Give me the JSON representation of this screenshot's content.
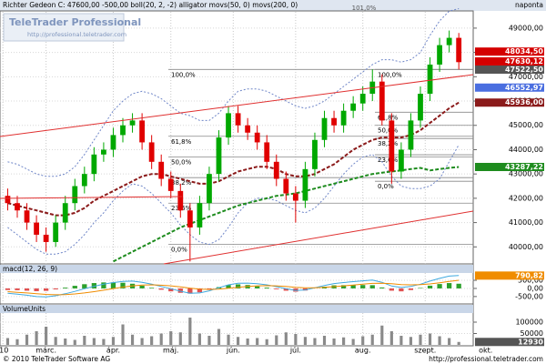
{
  "header": {
    "logo": "TeleTrader Professional",
    "logo_url": "http://professional.teletrader.com",
    "period": "naponta"
  },
  "footer": {
    "copyright": "© 2010 TeleTrader Software AG",
    "url": "http://professional.teletrader.com"
  },
  "chart_data": [
    {
      "type": "candlestick",
      "title": "Richter Gedeon C: 47600,00 -500,00 boll(20, 2, -2) alligator movs(50, 0) movs(200, 0)",
      "top_label": "101,0%",
      "xlim": [
        -0.8,
        48.5
      ],
      "xticks": [
        {
          "value": -0.5,
          "label": "'10"
        },
        {
          "value": 4,
          "label": "márc."
        },
        {
          "value": 11,
          "label": "ápr."
        },
        {
          "value": 17,
          "label": "máj."
        },
        {
          "value": 23.5,
          "label": "jún."
        },
        {
          "value": 30,
          "label": "júl."
        },
        {
          "value": 37,
          "label": "aug."
        },
        {
          "value": 43.5,
          "label": "szept."
        },
        {
          "value": 49.8,
          "label": "okt."
        }
      ],
      "ylim": [
        39300,
        49670
      ],
      "yticks": [
        {
          "value": 40000,
          "label": "40000,00"
        },
        {
          "value": 41000,
          "label": "41000,00"
        },
        {
          "value": 42000,
          "label": "42000,00"
        },
        {
          "value": 43000,
          "label": "43000,00"
        },
        {
          "value": 44000,
          "label": "44000,00"
        },
        {
          "value": 45000,
          "label": "45000,00"
        },
        {
          "value": 46000,
          "label": "46000,00"
        },
        {
          "value": 47000,
          "label": "47000,00"
        },
        {
          "value": 48000,
          "label": "48000,00"
        },
        {
          "value": 49000,
          "label": "49000,00"
        }
      ],
      "grid": true,
      "up_color": "#00a800",
      "down_color": "#e00000",
      "ohlc": {
        "open": [
          42100,
          41800,
          41500,
          41000,
          40500,
          40200,
          41000,
          41800,
          42500,
          43000,
          43800,
          44000,
          44600,
          45000,
          45200,
          44300,
          43500,
          42800,
          42300,
          41500,
          40800,
          41800,
          43000,
          44500,
          45500,
          45000,
          44700,
          44300,
          43500,
          42800,
          42200,
          41900,
          43200,
          44400,
          45300,
          45000,
          45600,
          45900,
          46300,
          46800,
          45200,
          43100,
          44000,
          45200,
          46300,
          47500,
          48300,
          48600
        ],
        "high": [
          42400,
          42100,
          41800,
          41300,
          40800,
          41300,
          42100,
          42800,
          43300,
          44100,
          44300,
          44900,
          45300,
          45500,
          45500,
          44600,
          43800,
          43100,
          42600,
          41800,
          42100,
          43300,
          44800,
          45800,
          45800,
          45300,
          45000,
          44600,
          43800,
          43100,
          42500,
          43500,
          44700,
          45600,
          45600,
          45900,
          46200,
          46600,
          47300,
          47100,
          45500,
          44300,
          45500,
          46600,
          47800,
          48600,
          48900,
          48800
        ],
        "low": [
          41500,
          41200,
          40700,
          40200,
          39800,
          40000,
          40700,
          41500,
          42200,
          42700,
          43500,
          43700,
          44300,
          44700,
          44000,
          43200,
          42500,
          42000,
          41200,
          39400,
          40500,
          41500,
          42700,
          44200,
          44700,
          44400,
          44000,
          43200,
          42500,
          41900,
          41000,
          41600,
          42900,
          44100,
          44700,
          44700,
          45300,
          45600,
          46000,
          45000,
          42600,
          42800,
          43700,
          44900,
          46000,
          47200,
          48000,
          47300
        ],
        "close": [
          41800,
          41500,
          41000,
          40500,
          40200,
          41000,
          41800,
          42500,
          43000,
          43800,
          44000,
          44600,
          45000,
          45200,
          44300,
          43500,
          42800,
          42300,
          41500,
          40800,
          41800,
          43000,
          44500,
          45500,
          45000,
          44700,
          44300,
          43500,
          42800,
          42200,
          41900,
          43200,
          44400,
          45300,
          45000,
          45600,
          45900,
          46300,
          46800,
          45200,
          43100,
          44000,
          45200,
          46300,
          47500,
          48300,
          48600,
          47600
        ]
      },
      "lines": [
        {
          "color": "#6f86c8",
          "dash": "2,2",
          "values": [
            43500,
            43400,
            43200,
            43000,
            42900,
            42900,
            43000,
            43300,
            43800,
            44400,
            45000,
            45600,
            46000,
            46300,
            46400,
            46300,
            46100,
            45800,
            45500,
            45400,
            45200,
            45200,
            45500,
            46000,
            46400,
            46500,
            46500,
            46400,
            46200,
            46000,
            45800,
            45700,
            45800,
            46000,
            46300,
            46600,
            46900,
            47200,
            47500,
            47700,
            47700,
            47600,
            47700,
            48000,
            48700,
            49300,
            49700,
            49800
          ]
        },
        {
          "color": "#6f86c8",
          "dash": "2,2",
          "values": [
            40800,
            40500,
            40200,
            39900,
            39700,
            39700,
            39800,
            40100,
            40500,
            41000,
            41400,
            41900,
            42300,
            42600,
            42500,
            42200,
            41800,
            41400,
            40900,
            40500,
            40200,
            40100,
            40300,
            40800,
            41400,
            41800,
            42000,
            42000,
            41900,
            41700,
            41500,
            41400,
            41600,
            42000,
            42500,
            43000,
            43400,
            43700,
            43800,
            43500,
            42900,
            42500,
            42400,
            42400,
            42500,
            42800,
            43500,
            44200
          ]
        },
        {
          "color": "#8b1a1a",
          "dash": "4,2",
          "width": 2,
          "values": [
            41800,
            41700,
            41600,
            41500,
            41400,
            41300,
            41300,
            41400,
            41600,
            41900,
            42100,
            42300,
            42500,
            42700,
            42900,
            43000,
            43000,
            42900,
            42800,
            42700,
            42600,
            42600,
            42700,
            42900,
            43100,
            43200,
            43300,
            43300,
            43200,
            43000,
            42900,
            42900,
            43000,
            43200,
            43400,
            43700,
            44000,
            44200,
            44400,
            44500,
            44500,
            44500,
            44600,
            44800,
            45100,
            45400,
            45700,
            45936
          ]
        },
        {
          "color": "#1e8c1e",
          "dash": "4,2",
          "width": 2,
          "values": [
            null,
            null,
            null,
            null,
            null,
            null,
            null,
            null,
            null,
            null,
            null,
            39400,
            39600,
            39800,
            40000,
            40200,
            40400,
            40600,
            40800,
            40950,
            41100,
            41250,
            41400,
            41550,
            41700,
            41800,
            41900,
            42000,
            42100,
            42150,
            42200,
            42300,
            42400,
            42500,
            42600,
            42700,
            42800,
            42900,
            43000,
            43050,
            43100,
            43150,
            43200,
            43250,
            43150,
            43200,
            43250,
            43287
          ]
        }
      ],
      "fibs": [
        {
          "color": "#888888",
          "labels": [
            "100,0%",
            "61,8%",
            "50,0%",
            "38,2%",
            "23,6%",
            "0,0%"
          ],
          "prices": [
            47300,
            44550,
            43700,
            42850,
            41800,
            40100
          ]
        },
        {
          "color": "#888888",
          "labels": [
            "100,0%",
            "61,8%",
            "50,0%",
            "38,2%",
            "23,6%",
            "0,0%"
          ],
          "prices": [
            47300,
            45540,
            45000,
            44460,
            43790,
            42700
          ]
        }
      ],
      "badges": [
        {
          "value": 48034.5,
          "label": "48034,50",
          "color": "#d40000"
        },
        {
          "value": 47630.12,
          "label": "47630,12",
          "color": "#d40000"
        },
        {
          "value": 47522.5,
          "label": "47522,50",
          "color": "#555555"
        },
        {
          "value": 46552.97,
          "label": "46552,97",
          "color": "#4a6ee0"
        },
        {
          "value": 45936,
          "label": "45936,00",
          "color": "#8b1a1a"
        },
        {
          "value": 43287.22,
          "label": "43287,22",
          "color": "#1e8c1e"
        }
      ]
    },
    {
      "type": "macd",
      "title": "macd(12, 26, 9)",
      "ylim": [
        -900,
        950
      ],
      "yticks": [
        {
          "value": 500,
          "label": "500,00"
        },
        {
          "value": 0,
          "label": "0,00"
        },
        {
          "value": -500,
          "label": "-500,00"
        }
      ],
      "macd": {
        "color": "#3fa9e0",
        "values": [
          -300,
          -350,
          -420,
          -500,
          -520,
          -450,
          -330,
          -180,
          -20,
          130,
          260,
          360,
          430,
          450,
          380,
          260,
          120,
          -20,
          -170,
          -300,
          -280,
          -150,
          40,
          220,
          320,
          330,
          290,
          220,
          110,
          -20,
          -130,
          -90,
          40,
          180,
          300,
          360,
          420,
          470,
          510,
          380,
          150,
          60,
          120,
          260,
          450,
          620,
          760,
          790.82
        ]
      },
      "signal": {
        "color": "#f08c00",
        "values": [
          -200,
          -240,
          -280,
          -330,
          -370,
          -390,
          -380,
          -340,
          -280,
          -200,
          -110,
          -10,
          80,
          160,
          210,
          220,
          200,
          160,
          100,
          20,
          -40,
          -60,
          -40,
          10,
          70,
          120,
          160,
          170,
          160,
          120,
          70,
          40,
          40,
          70,
          110,
          160,
          210,
          260,
          310,
          320,
          290,
          240,
          220,
          230,
          280,
          350,
          430,
          500
        ]
      },
      "histogram": {
        "up_color": "#2ca02c",
        "down_color": "#e05050",
        "values": [
          -100,
          -110,
          -140,
          -170,
          -150,
          -60,
          50,
          160,
          260,
          330,
          370,
          370,
          350,
          290,
          170,
          40,
          -80,
          -180,
          -270,
          -320,
          -240,
          -90,
          80,
          210,
          250,
          210,
          130,
          50,
          -50,
          -140,
          -200,
          -130,
          0,
          110,
          190,
          200,
          210,
          210,
          200,
          60,
          -140,
          -180,
          -100,
          30,
          170,
          270,
          330,
          290
        ]
      },
      "badge": {
        "value": 790.82,
        "label": "790,82",
        "color": "#f08c00"
      }
    },
    {
      "type": "bar",
      "title": "VolumeUnits",
      "ylim": [
        0,
        140000
      ],
      "yticks": [
        50000,
        100000
      ],
      "color": "#8a8a8a",
      "values": [
        30000,
        25000,
        45000,
        60000,
        80000,
        35000,
        28000,
        22000,
        40000,
        30000,
        26000,
        35000,
        90000,
        45000,
        30000,
        38000,
        50000,
        60000,
        55000,
        120000,
        50000,
        40000,
        70000,
        45000,
        35000,
        28000,
        30000,
        25000,
        42000,
        55000,
        48000,
        35000,
        30000,
        40000,
        28000,
        33000,
        26000,
        38000,
        45000,
        85000,
        60000,
        40000,
        35000,
        45000,
        50000,
        38000,
        30000,
        12930
      ],
      "badge": {
        "value": 12930,
        "label": "12930",
        "color": "#555555"
      }
    }
  ]
}
